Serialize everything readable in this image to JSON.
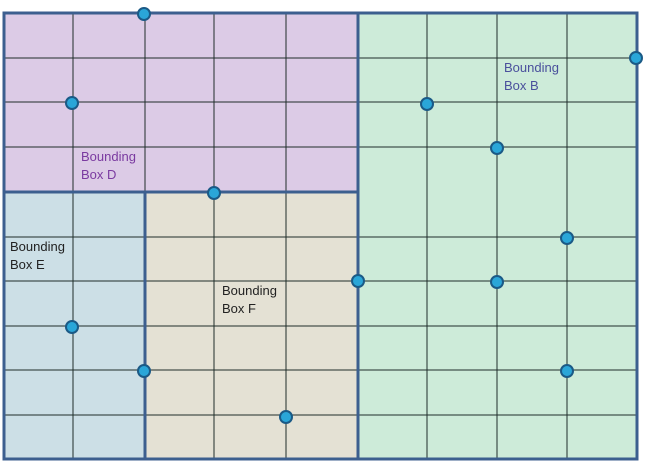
{
  "colors": {
    "frame": "#3c5f8f",
    "gridline": "#1f2d2a",
    "point_fill": "#2aa6d8",
    "point_stroke": "#1b5a86",
    "label_dark": "#222222",
    "label_purple": "#7a3aa0",
    "label_blue": "#4a4f9c"
  },
  "boxes": [
    {
      "id": "D",
      "label_line1": "Bounding",
      "label_line2": "Box D",
      "fill": "#dccbe6",
      "label_color": "#7a3aa0"
    },
    {
      "id": "B",
      "label_line1": "Bounding",
      "label_line2": "Box B",
      "fill": "#cdebd9",
      "label_color": "#4a4f9c"
    },
    {
      "id": "E",
      "label_line1": "Bounding",
      "label_line2": "Box E",
      "fill": "#ccdfe6",
      "label_color": "#222222"
    },
    {
      "id": "F",
      "label_line1": "Bounding",
      "label_line2": "Box F",
      "fill": "#e4e1d4",
      "label_color": "#222222"
    }
  ],
  "point_icon": "circle-point-icon"
}
